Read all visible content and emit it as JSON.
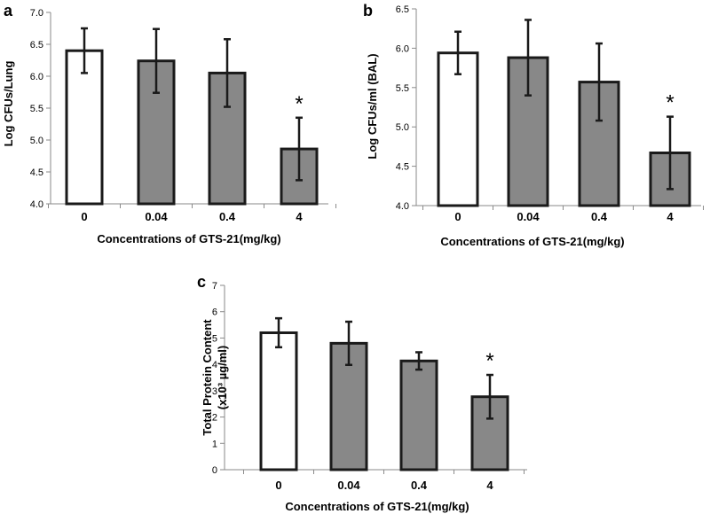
{
  "figure": {
    "colors": {
      "control": "#ffffff",
      "treated": "#888888",
      "stroke": "#1a1a1a"
    }
  },
  "chart_data": [
    {
      "panel": "a",
      "type": "bar",
      "categories": [
        "0",
        "0.04",
        "0.4",
        "4"
      ],
      "values": [
        6.4,
        6.24,
        6.05,
        4.86
      ],
      "errors": [
        0.35,
        0.5,
        0.53,
        0.49
      ],
      "significance": [
        "",
        "",
        "",
        "*"
      ],
      "ylim": [
        4.0,
        7.0
      ],
      "yticks": [
        "4.0",
        "4.5",
        "5.0",
        "5.5",
        "6.0",
        "6.5",
        "7.0"
      ],
      "ylabel": "Log CFUs/Lung",
      "ylabel_lines": [
        "Log CFUs/Lung"
      ],
      "xlabel": "Concentrations of GTS-21(mg/kg)"
    },
    {
      "panel": "b",
      "type": "bar",
      "categories": [
        "0",
        "0.04",
        "0.4",
        "4"
      ],
      "values": [
        5.94,
        5.88,
        5.57,
        4.67
      ],
      "errors": [
        0.27,
        0.48,
        0.49,
        0.46
      ],
      "significance": [
        "",
        "",
        "",
        "*"
      ],
      "ylim": [
        4.0,
        6.5
      ],
      "yticks": [
        "4.0",
        "4.5",
        "5.0",
        "5.5",
        "6.0",
        "6.5"
      ],
      "ylabel": "Log CFUs/ml (BAL)",
      "ylabel_lines": [
        "Log CFUs/ml (BAL)"
      ],
      "xlabel": "Concentrations of GTS-21(mg/kg)"
    },
    {
      "panel": "c",
      "type": "bar",
      "categories": [
        "0",
        "0.04",
        "0.4",
        "4"
      ],
      "values": [
        5.2,
        4.8,
        4.13,
        2.77
      ],
      "errors": [
        0.55,
        0.82,
        0.33,
        0.83
      ],
      "significance": [
        "",
        "",
        "",
        "*"
      ],
      "ylim": [
        0,
        7
      ],
      "yticks": [
        "0",
        "1",
        "2",
        "3",
        "4",
        "5",
        "6",
        "7"
      ],
      "ylabel": "Total Protein Content (x10³ µg/ml)",
      "ylabel_lines": [
        "Total Protein Content",
        "(x10³ µg/ml)"
      ],
      "xlabel": "Concentrations of GTS-21(mg/kg)"
    }
  ]
}
